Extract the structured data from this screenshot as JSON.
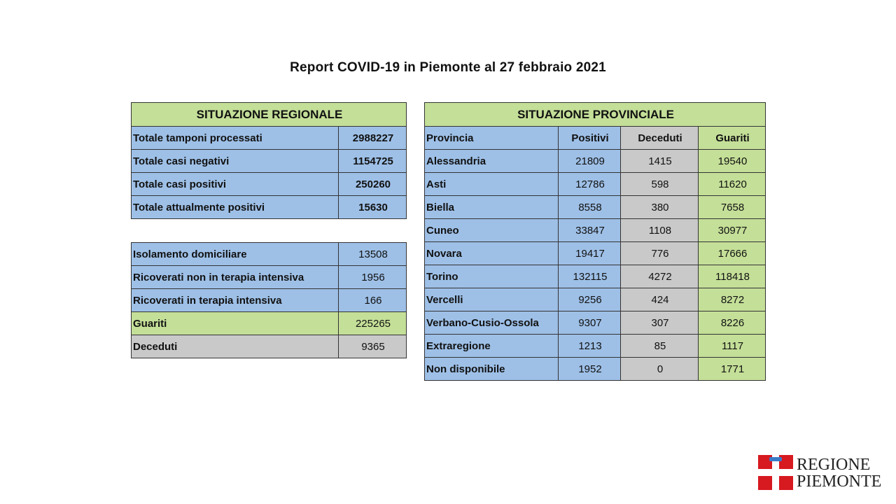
{
  "title": "Report COVID-19 in Piemonte al 27 febbraio 2021",
  "regional": {
    "header": "SITUAZIONE REGIONALE",
    "rows": [
      {
        "label": "Totale tamponi processati",
        "value": "2988227"
      },
      {
        "label": "Totale casi negativi",
        "value": "1154725"
      },
      {
        "label": "Totale casi positivi",
        "value": "250260"
      },
      {
        "label": "Totale attualmente positivi",
        "value": "15630"
      }
    ],
    "detail": [
      {
        "label": "Isolamento domiciliare",
        "value": "13508"
      },
      {
        "label": "Ricoverati non in terapia intensiva",
        "value": "1956"
      },
      {
        "label": "Ricoverati in terapia intensiva",
        "value": "166"
      },
      {
        "label": "Guariti",
        "value": "225265"
      },
      {
        "label": "Deceduti",
        "value": "9365"
      }
    ]
  },
  "provincial": {
    "header": "SITUAZIONE PROVINCIALE",
    "columns": [
      "Provincia",
      "Positivi",
      "Deceduti",
      "Guariti"
    ],
    "rows": [
      {
        "name": "Alessandria",
        "positivi": "21809",
        "deceduti": "1415",
        "guariti": "19540"
      },
      {
        "name": "Asti",
        "positivi": "12786",
        "deceduti": "598",
        "guariti": "11620"
      },
      {
        "name": "Biella",
        "positivi": "8558",
        "deceduti": "380",
        "guariti": "7658"
      },
      {
        "name": "Cuneo",
        "positivi": "33847",
        "deceduti": "1108",
        "guariti": "30977"
      },
      {
        "name": "Novara",
        "positivi": "19417",
        "deceduti": "776",
        "guariti": "17666"
      },
      {
        "name": "Torino",
        "positivi": "132115",
        "deceduti": "4272",
        "guariti": "118418"
      },
      {
        "name": "Vercelli",
        "positivi": "9256",
        "deceduti": "424",
        "guariti": "8272"
      },
      {
        "name": "Verbano-Cusio-Ossola",
        "positivi": "9307",
        "deceduti": "307",
        "guariti": "8226"
      },
      {
        "name": "Extraregione",
        "positivi": "1213",
        "deceduti": "85",
        "guariti": "1117"
      },
      {
        "name": "Non disponibile",
        "positivi": "1952",
        "deceduti": "0",
        "guariti": "1771"
      }
    ]
  },
  "logo": {
    "line1": "REGIONE",
    "line2": "PIEMONTE"
  },
  "colors": {
    "blue": "#9ec0e7",
    "green": "#c4df98",
    "grey": "#c9c9c9",
    "logo_red": "#d71920"
  }
}
